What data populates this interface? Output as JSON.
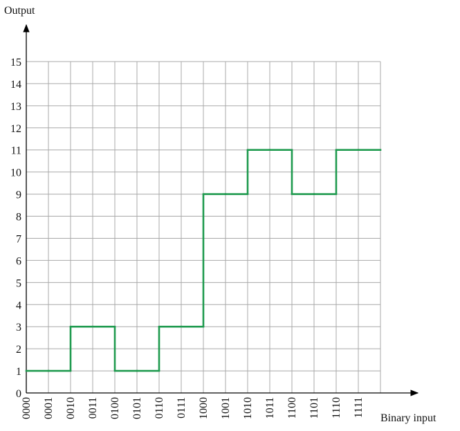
{
  "chart_data": {
    "type": "step",
    "y_label": "Output",
    "x_label": "Binary input",
    "categories": [
      "0000",
      "0001",
      "0010",
      "0011",
      "0100",
      "0101",
      "0110",
      "0111",
      "1000",
      "1001",
      "1010",
      "1011",
      "1100",
      "1101",
      "1110",
      "1111"
    ],
    "values": [
      1,
      1,
      3,
      3,
      1,
      1,
      3,
      3,
      9,
      9,
      11,
      11,
      9,
      9,
      11,
      11
    ],
    "color": "#1e9a4e",
    "ylim": [
      0,
      15
    ],
    "yticks": [
      0,
      1,
      2,
      3,
      4,
      5,
      6,
      7,
      8,
      9,
      10,
      11,
      12,
      13,
      14,
      15
    ],
    "grid": true
  }
}
